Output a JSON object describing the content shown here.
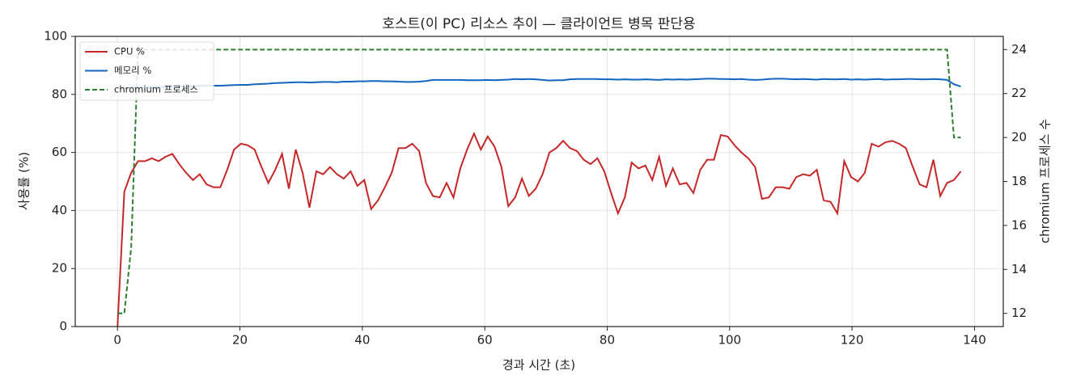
{
  "chart_data": {
    "type": "line",
    "title": "호스트(이 PC) 리소스 추이 — 클라이언트 병목 판단용",
    "x_label": "경과 시간 (초)",
    "y_label": "사용률 (%)",
    "y2_label": "chromium 프로세스 수",
    "x": [
      0,
      1.12,
      2.24,
      3.36,
      4.48,
      5.6,
      6.72,
      7.84,
      8.96,
      10.08,
      11.2,
      12.32,
      13.44,
      14.56,
      15.68,
      16.8,
      17.92,
      19.04,
      20.16,
      21.28,
      22.4,
      23.52,
      24.64,
      25.76,
      26.88,
      28,
      29.12,
      30.24,
      31.36,
      32.48,
      33.6,
      34.72,
      35.84,
      36.96,
      38.08,
      39.2,
      40.32,
      41.44,
      42.56,
      43.68,
      44.8,
      45.92,
      47.04,
      48.16,
      49.28,
      50.4,
      51.52,
      52.64,
      53.76,
      54.88,
      56,
      57.12,
      58.24,
      59.36,
      60.48,
      61.6,
      62.72,
      63.84,
      64.96,
      66.08,
      67.2,
      68.32,
      69.44,
      70.56,
      71.68,
      72.8,
      73.92,
      75.04,
      76.16,
      77.28,
      78.4,
      79.52,
      80.64,
      81.76,
      82.88,
      84,
      85.12,
      86.24,
      87.36,
      88.48,
      89.6,
      90.72,
      91.84,
      92.96,
      94.08,
      95.2,
      96.32,
      97.44,
      98.56,
      99.68,
      100.8,
      101.92,
      103.04,
      104.16,
      105.28,
      106.4,
      107.52,
      108.64,
      109.76,
      110.88,
      112,
      113.12,
      114.24,
      115.36,
      116.48,
      117.6,
      118.72,
      119.84,
      120.96,
      122.08,
      123.2,
      124.32,
      125.44,
      126.56,
      127.68,
      128.8,
      129.92,
      131.04,
      132.16,
      133.28,
      134.4,
      135.52,
      136.64,
      137.76
    ],
    "series": [
      {
        "name": "CPU %",
        "color": "#c62828",
        "linestyle": "solid",
        "values": [
          0,
          46.5,
          53,
          57,
          57,
          58,
          57,
          58.5,
          59.5,
          56,
          53,
          50.5,
          52.5,
          49,
          48,
          48,
          54,
          61,
          63,
          62.5,
          61,
          55,
          49.5,
          54,
          59.5,
          47.5,
          61,
          53,
          41,
          53.5,
          52.5,
          55,
          52.5,
          51,
          53.5,
          48.5,
          50.5,
          40.5,
          43.5,
          48,
          53,
          61.5,
          61.5,
          63,
          60.5,
          49.5,
          45,
          44.5,
          49.5,
          44.5,
          54.5,
          61,
          66.5,
          61,
          65.5,
          62,
          55,
          41.5,
          44.5,
          51,
          45,
          47.5,
          52.5,
          60,
          61.5,
          64,
          61.5,
          60.5,
          57.5,
          56,
          58,
          53.5,
          46,
          39,
          44.5,
          56.5,
          54.5,
          55.5,
          50.5,
          58.5,
          48.5,
          54.5,
          49,
          49.5,
          46,
          54,
          57.5,
          57.5,
          66,
          65.5,
          62.5,
          60,
          58,
          55,
          44,
          44.5,
          48,
          48,
          47.5,
          51.5,
          52.5,
          52,
          54,
          43.5,
          43,
          39,
          57,
          51.5,
          50,
          53,
          63,
          62,
          63.5,
          64,
          63,
          61.5,
          55,
          49,
          48,
          57.5,
          45,
          49.5,
          50.5,
          53.5
        ]
      },
      {
        "name": "메모리 %",
        "color": "#1565c0",
        "linestyle": "solid",
        "values": [
          82,
          82.2,
          82.3,
          82.4,
          82.5,
          82.5,
          82.6,
          82.6,
          82.7,
          82.7,
          82.8,
          82.8,
          82.9,
          83,
          83,
          83,
          83.1,
          83.2,
          83.3,
          83.3,
          83.5,
          83.6,
          83.7,
          83.9,
          84,
          84.1,
          84.2,
          84.2,
          84.1,
          84.2,
          84.3,
          84.3,
          84.2,
          84.4,
          84.4,
          84.5,
          84.5,
          84.6,
          84.6,
          84.5,
          84.5,
          84.4,
          84.3,
          84.3,
          84.4,
          84.6,
          85,
          85,
          85,
          85,
          85,
          84.9,
          84.9,
          84.9,
          85,
          84.9,
          85,
          85.1,
          85.3,
          85.2,
          85.3,
          85.2,
          85,
          84.8,
          84.9,
          84.9,
          85.2,
          85.3,
          85.3,
          85.3,
          85.3,
          85.2,
          85.2,
          85.1,
          85.2,
          85.1,
          85.1,
          85.2,
          85.1,
          85,
          85.2,
          85.1,
          85.2,
          85.1,
          85.2,
          85.3,
          85.4,
          85.4,
          85.3,
          85.3,
          85.2,
          85.3,
          85.1,
          85,
          85.1,
          85.3,
          85.4,
          85.4,
          85.3,
          85.2,
          85.3,
          85.2,
          85.1,
          85.3,
          85.2,
          85.2,
          85.3,
          85.1,
          85.2,
          85.1,
          85.2,
          85.3,
          85.1,
          85.2,
          85.2,
          85.3,
          85.3,
          85.2,
          85.2,
          85.3,
          85.2,
          85,
          83.5,
          82.7
        ]
      },
      {
        "name": "chromium 프로세스",
        "color": "#2e7d32",
        "linestyle": "dashed",
        "axis": "y2",
        "values": [
          12,
          12,
          15,
          24,
          24,
          24,
          24,
          24,
          24,
          24,
          24,
          24,
          24,
          24,
          24,
          24,
          24,
          24,
          24,
          24,
          24,
          24,
          24,
          24,
          24,
          24,
          24,
          24,
          24,
          24,
          24,
          24,
          24,
          24,
          24,
          24,
          24,
          24,
          24,
          24,
          24,
          24,
          24,
          24,
          24,
          24,
          24,
          24,
          24,
          24,
          24,
          24,
          24,
          24,
          24,
          24,
          24,
          24,
          24,
          24,
          24,
          24,
          24,
          24,
          24,
          24,
          24,
          24,
          24,
          24,
          24,
          24,
          24,
          24,
          24,
          24,
          24,
          24,
          24,
          24,
          24,
          24,
          24,
          24,
          24,
          24,
          24,
          24,
          24,
          24,
          24,
          24,
          24,
          24,
          24,
          24,
          24,
          24,
          24,
          24,
          24,
          24,
          24,
          24,
          24,
          24,
          24,
          24,
          24,
          24,
          24,
          24,
          24,
          24,
          24,
          24,
          24,
          24,
          24,
          24,
          24,
          24,
          20,
          20
        ]
      }
    ],
    "xlim": [
      -6.9,
      144.7
    ],
    "ylim": [
      0,
      100
    ],
    "y2lim": [
      11.4,
      24.6
    ],
    "xticks": [
      0,
      20,
      40,
      60,
      80,
      100,
      120,
      140
    ],
    "yticks": [
      0,
      20,
      40,
      60,
      80,
      100
    ],
    "y2ticks": [
      12,
      14,
      16,
      18,
      20,
      22,
      24
    ],
    "grid": true,
    "legend": "upper left"
  }
}
